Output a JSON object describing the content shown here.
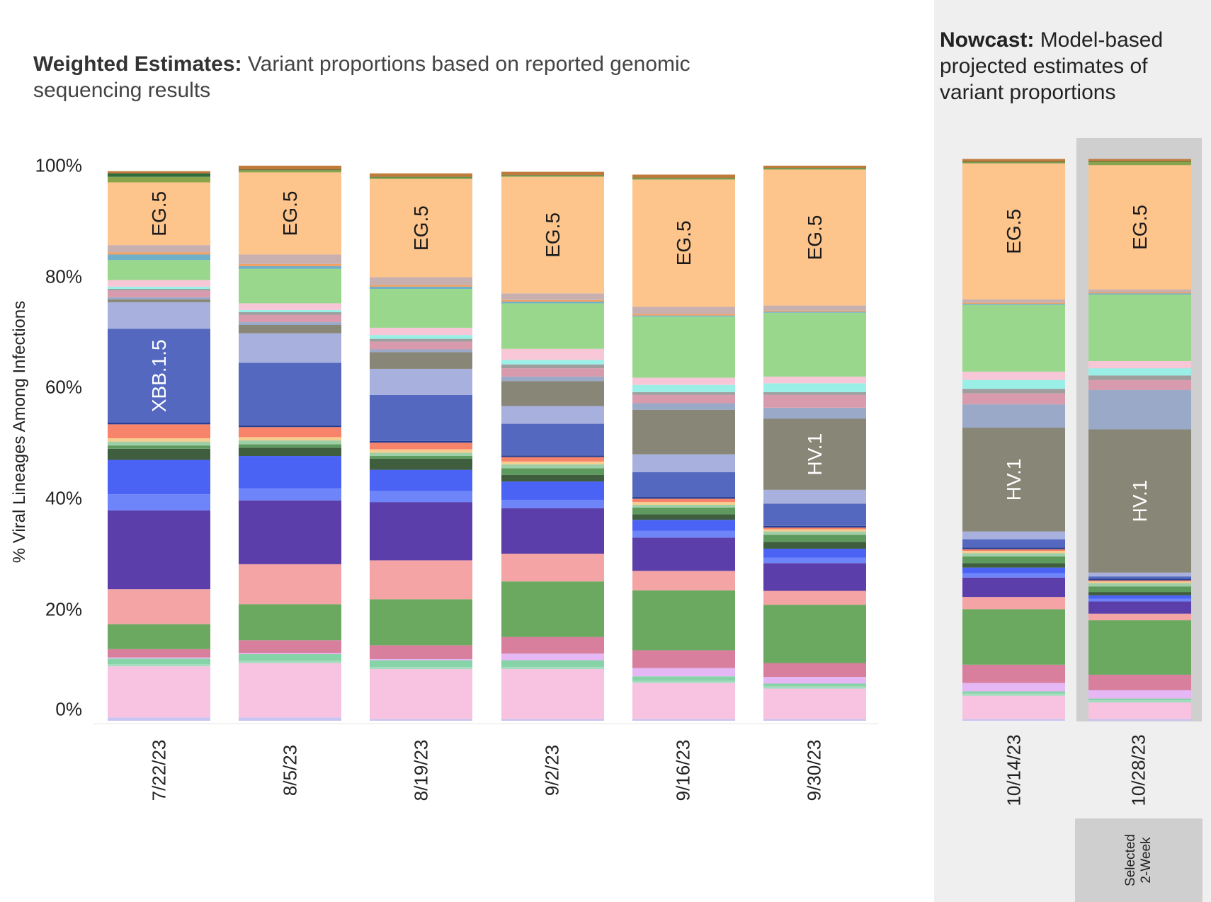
{
  "title_left": {
    "bold": "Weighted Estimates:",
    "rest": " Variant proportions based on reported genomic sequencing results"
  },
  "title_right": {
    "bold": "Nowcast:",
    "rest": " Model-based projected estimates of variant proportions"
  },
  "selected_label": "Selected\n2-Week",
  "chart_data": {
    "type": "bar",
    "stacked": true,
    "ylabel": "% Viral Lineages Among Infections",
    "ylim": [
      0,
      100
    ],
    "yticks": [
      "0%",
      "20%",
      "40%",
      "60%",
      "80%",
      "100%"
    ],
    "categories": [
      "7/22/23",
      "8/5/23",
      "8/19/23",
      "9/2/23",
      "9/16/23",
      "9/30/23",
      "10/14/23",
      "10/28/23"
    ],
    "panels": {
      "weighted_estimates": [
        "7/22/23",
        "8/5/23",
        "8/19/23",
        "9/2/23",
        "9/16/23",
        "9/30/23"
      ],
      "nowcast": [
        "10/14/23",
        "10/28/23"
      ]
    },
    "selected_category": "10/28/23",
    "segment_labels": [
      {
        "category": "7/22/23",
        "text": "XBB.1.5"
      },
      {
        "category": "7/22/23",
        "text": "EG.5"
      },
      {
        "category": "8/5/23",
        "text": "EG.5"
      },
      {
        "category": "8/19/23",
        "text": "EG.5"
      },
      {
        "category": "9/2/23",
        "text": "EG.5"
      },
      {
        "category": "9/16/23",
        "text": "EG.5"
      },
      {
        "category": "9/30/23",
        "text": "EG.5"
      },
      {
        "category": "9/30/23",
        "text": "HV.1"
      },
      {
        "category": "10/14/23",
        "text": "EG.5"
      },
      {
        "category": "10/14/23",
        "text": "HV.1"
      },
      {
        "category": "10/28/23",
        "text": "EG.5"
      },
      {
        "category": "10/28/23",
        "text": "HV.1"
      }
    ],
    "series": [
      {
        "color": "#c9c5f2",
        "values": [
          0.6,
          0.6,
          0.3,
          0.3,
          0.3,
          0.3,
          0.3,
          0.3
        ]
      },
      {
        "color": "#f7c3e1",
        "values": [
          9.2,
          9.8,
          9.0,
          9.0,
          6.5,
          5.5,
          4.2,
          3.0
        ]
      },
      {
        "color": "#a5dbbf",
        "values": [
          0.4,
          0.4,
          0.4,
          0.4,
          0.4,
          0.4,
          0.4,
          0.4
        ]
      },
      {
        "color": "#86d3a7",
        "values": [
          1.0,
          1.2,
          1.2,
          1.2,
          0.8,
          0.5,
          0.4,
          0.3
        ]
      },
      {
        "color": "#e5b8f5",
        "values": [
          0.2,
          0.2,
          0.2,
          1.2,
          1.5,
          1.2,
          1.5,
          1.5
        ]
      },
      {
        "color": "#d87f9e",
        "values": [
          1.5,
          2.3,
          2.5,
          3.0,
          3.2,
          2.5,
          3.3,
          2.8
        ]
      },
      {
        "color": "#6ba960",
        "values": [
          4.5,
          6.5,
          8.3,
          10.0,
          10.8,
          10.5,
          10.0,
          9.8
        ]
      },
      {
        "color": "#f4a4a4",
        "values": [
          6.3,
          7.2,
          7.0,
          5.0,
          3.5,
          2.5,
          2.2,
          1.2
        ]
      },
      {
        "color": "#5b3eaa",
        "values": [
          14.2,
          11.5,
          10.5,
          8.2,
          6.0,
          5.0,
          3.5,
          2.2
        ]
      },
      {
        "color": "#6e85fa",
        "values": [
          2.9,
          2.2,
          2.0,
          1.5,
          1.2,
          1.0,
          0.8,
          0.5
        ]
      },
      {
        "color": "#4b63f5",
        "values": [
          6.2,
          5.8,
          3.8,
          3.3,
          2.0,
          1.6,
          1.0,
          0.6
        ]
      },
      {
        "color": "#3e5e3e",
        "values": [
          2.0,
          1.5,
          2.0,
          1.2,
          1.0,
          1.2,
          0.8,
          0.6
        ]
      },
      {
        "color": "#5e9a5e",
        "values": [
          0.6,
          0.6,
          0.5,
          1.2,
          1.2,
          1.3,
          1.2,
          1.0
        ]
      },
      {
        "color": "#9ecfa6",
        "values": [
          0.7,
          0.7,
          0.6,
          0.7,
          0.5,
          0.6,
          0.6,
          0.6
        ]
      },
      {
        "color": "#f6cd8f",
        "values": [
          0.6,
          0.6,
          0.6,
          0.5,
          0.5,
          0.4,
          0.4,
          0.3
        ]
      },
      {
        "color": "#f7836a",
        "values": [
          2.5,
          1.8,
          1.2,
          0.8,
          0.6,
          0.3,
          0.3,
          0.2
        ]
      },
      {
        "color": "#273e92",
        "values": [
          0.3,
          0.3,
          0.3,
          0.3,
          0.3,
          0.3,
          0.3,
          0.3
        ]
      },
      {
        "color": "#5468c0",
        "values": [
          16.9,
          11.3,
          8.3,
          5.7,
          4.5,
          4.0,
          1.5,
          0.4
        ]
      },
      {
        "color": "#a8b0de",
        "values": [
          4.8,
          5.3,
          4.7,
          3.2,
          3.2,
          2.5,
          1.4,
          0.7
        ]
      },
      {
        "color": "#888676",
        "values": [
          0.5,
          1.5,
          3.0,
          4.5,
          8.0,
          12.8,
          18.7,
          25.8
        ]
      },
      {
        "color": "#9aa9c8",
        "values": [
          0.4,
          0.5,
          0.5,
          0.8,
          1.2,
          2.0,
          4.2,
          7.1
        ]
      },
      {
        "color": "#d89bad",
        "values": [
          1.2,
          1.3,
          1.4,
          1.5,
          1.5,
          2.3,
          2.0,
          1.8
        ]
      },
      {
        "color": "#9e9e9e",
        "values": [
          0.3,
          0.5,
          0.5,
          0.7,
          0.5,
          0.5,
          0.8,
          0.8
        ]
      },
      {
        "color": "#9af0e6",
        "values": [
          0.4,
          0.4,
          0.7,
          0.8,
          1.3,
          1.6,
          1.6,
          1.3
        ]
      },
      {
        "color": "#f7c7d8",
        "values": [
          1.2,
          1.2,
          1.3,
          2.0,
          1.3,
          1.2,
          1.5,
          1.3
        ]
      },
      {
        "color": "#99d88c",
        "values": [
          3.6,
          6.2,
          7.0,
          8.2,
          11.0,
          11.5,
          12.0,
          12.0
        ]
      },
      {
        "color": "#6fb0c8",
        "values": [
          1.0,
          0.5,
          0.4,
          0.3,
          0.2,
          0.2,
          0.2,
          0.2
        ]
      },
      {
        "color": "#f0a060",
        "values": [
          0.4,
          0.4,
          0.3,
          0.3,
          0.3,
          0.2,
          0.2,
          0.2
        ]
      },
      {
        "color": "#c8b0b0",
        "values": [
          1.3,
          1.7,
          1.4,
          1.2,
          1.3,
          0.9,
          0.6,
          0.5
        ]
      },
      {
        "color": "#fdc48c",
        "values": [
          11.3,
          14.8,
          17.7,
          21.0,
          22.9,
          24.5,
          24.5,
          22.4
        ]
      },
      {
        "color": "#8aa44c",
        "values": [
          1.0,
          0.4,
          0.3,
          0.2,
          0.2,
          0.2,
          0.2,
          0.6
        ]
      },
      {
        "color": "#2e6b3d",
        "values": [
          0.6,
          0.1,
          0.1,
          0.1,
          0.1,
          0.1,
          0.1,
          0.1
        ]
      },
      {
        "color": "#c07a3a",
        "values": [
          0.4,
          0.7,
          0.6,
          0.6,
          0.6,
          0.4,
          0.5,
          0.4
        ]
      }
    ]
  }
}
